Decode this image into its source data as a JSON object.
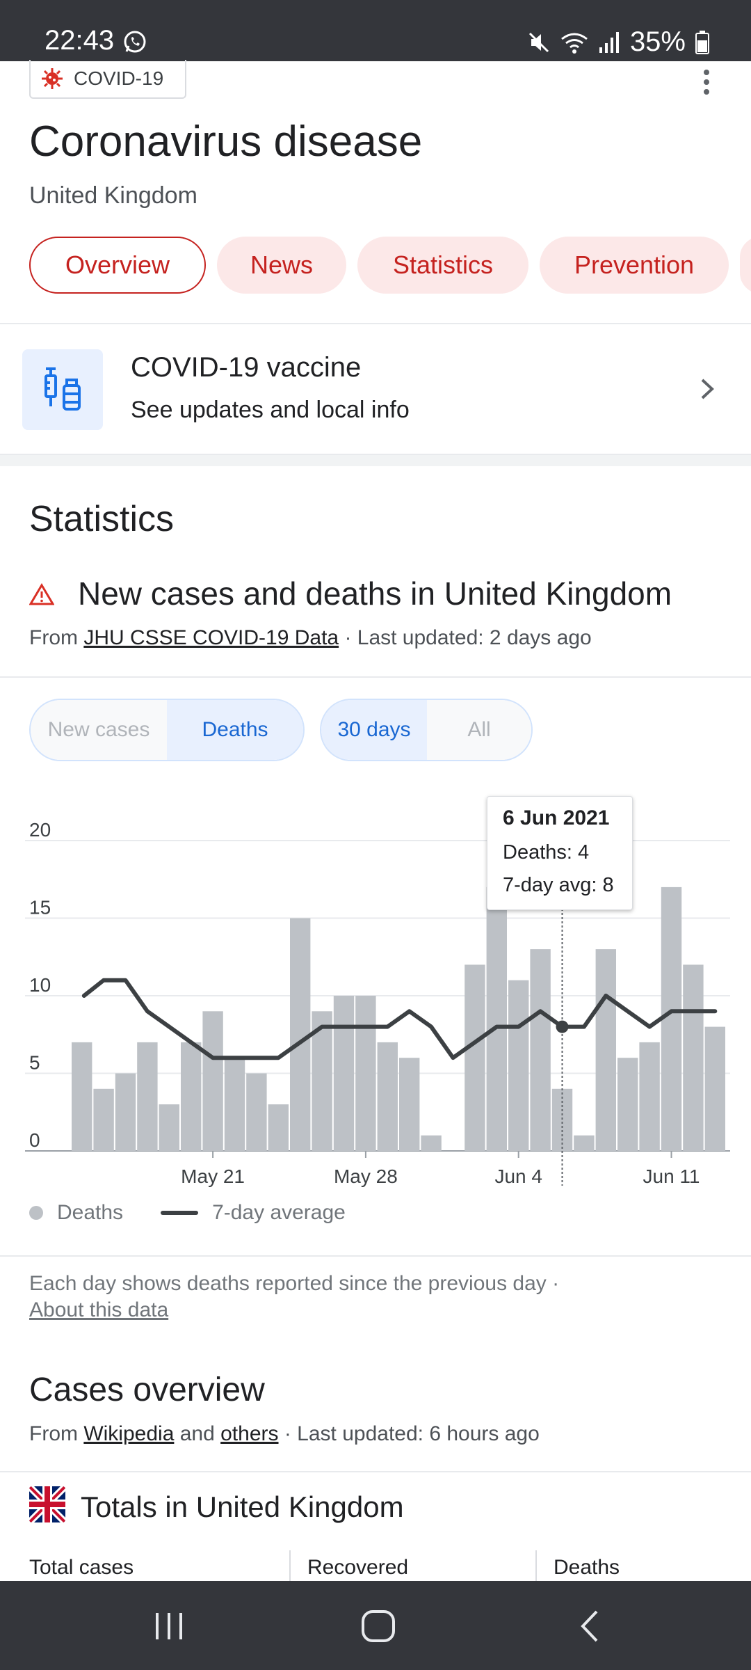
{
  "status_bar": {
    "time": "22:43",
    "battery": "35%"
  },
  "header": {
    "chip_label": "COVID-19",
    "title": "Coronavirus disease",
    "subtitle": "United Kingdom"
  },
  "tabs": [
    {
      "label": "Overview",
      "active": true
    },
    {
      "label": "News",
      "active": false
    },
    {
      "label": "Statistics",
      "active": false
    },
    {
      "label": "Prevention",
      "active": false
    }
  ],
  "vaccine": {
    "title": "COVID-19 vaccine",
    "subtitle": "See updates and local info"
  },
  "statistics": {
    "heading": "Statistics",
    "chart_title": "New cases and deaths in United Kingdom",
    "source_prefix": "From ",
    "source_link": "JHU CSSE COVID-19 Data",
    "source_suffix": " · Last updated: 2 days ago",
    "metric_toggle": {
      "new_cases": "New cases",
      "deaths": "Deaths",
      "selected": "Deaths"
    },
    "range_toggle": {
      "thirty_days": "30 days",
      "all": "All",
      "selected": "30 days"
    },
    "tooltip": {
      "date": "6 Jun 2021",
      "deaths": "Deaths: 4",
      "avg": "7-day avg: 8"
    },
    "legend": {
      "bars": "Deaths",
      "line": "7-day average"
    },
    "note": "Each day shows deaths reported since the previous day  ·",
    "note_link": "About this data"
  },
  "chart_data": {
    "type": "bar",
    "title": "",
    "x": [
      "May 15",
      "May 16",
      "May 17",
      "May 18",
      "May 19",
      "May 20",
      "May 21",
      "May 22",
      "May 23",
      "May 24",
      "May 25",
      "May 26",
      "May 27",
      "May 28",
      "May 29",
      "May 30",
      "May 31",
      "Jun 1",
      "Jun 2",
      "Jun 3",
      "Jun 4",
      "Jun 5",
      "Jun 6",
      "Jun 7",
      "Jun 8",
      "Jun 9",
      "Jun 10",
      "Jun 11",
      "Jun 12",
      "Jun 13"
    ],
    "x_tick_labels": [
      "May 21",
      "May 28",
      "Jun 4",
      "Jun 11"
    ],
    "y_ticks": [
      0,
      5,
      10,
      15,
      20
    ],
    "ylim": [
      0,
      20
    ],
    "series": [
      {
        "name": "Deaths",
        "kind": "bar",
        "color": "#bdc1c6",
        "values": [
          7,
          4,
          5,
          7,
          3,
          7,
          9,
          6,
          5,
          3,
          15,
          9,
          10,
          10,
          7,
          6,
          1,
          0,
          12,
          17,
          11,
          13,
          4,
          1,
          13,
          6,
          7,
          17,
          12,
          8
        ]
      },
      {
        "name": "7-day average",
        "kind": "line",
        "color": "#3c4043",
        "values": [
          10,
          11,
          11,
          9,
          8,
          7,
          6,
          6,
          6,
          6,
          7,
          8,
          8,
          8,
          8,
          9,
          8,
          6,
          7,
          8,
          8,
          9,
          8,
          8,
          10,
          9,
          8,
          9,
          9,
          9
        ]
      }
    ],
    "highlight_index": 22,
    "grid": true,
    "legend": "bottom-left"
  },
  "cases_overview": {
    "heading": "Cases overview",
    "source_prefix": "From ",
    "source_link1": "Wikipedia",
    "source_mid": " and ",
    "source_link2": "others",
    "source_suffix": " · Last updated: 6 hours ago",
    "totals_title": "Totals in United Kingdom",
    "columns": [
      "Total cases",
      "Recovered",
      "Deaths"
    ]
  }
}
